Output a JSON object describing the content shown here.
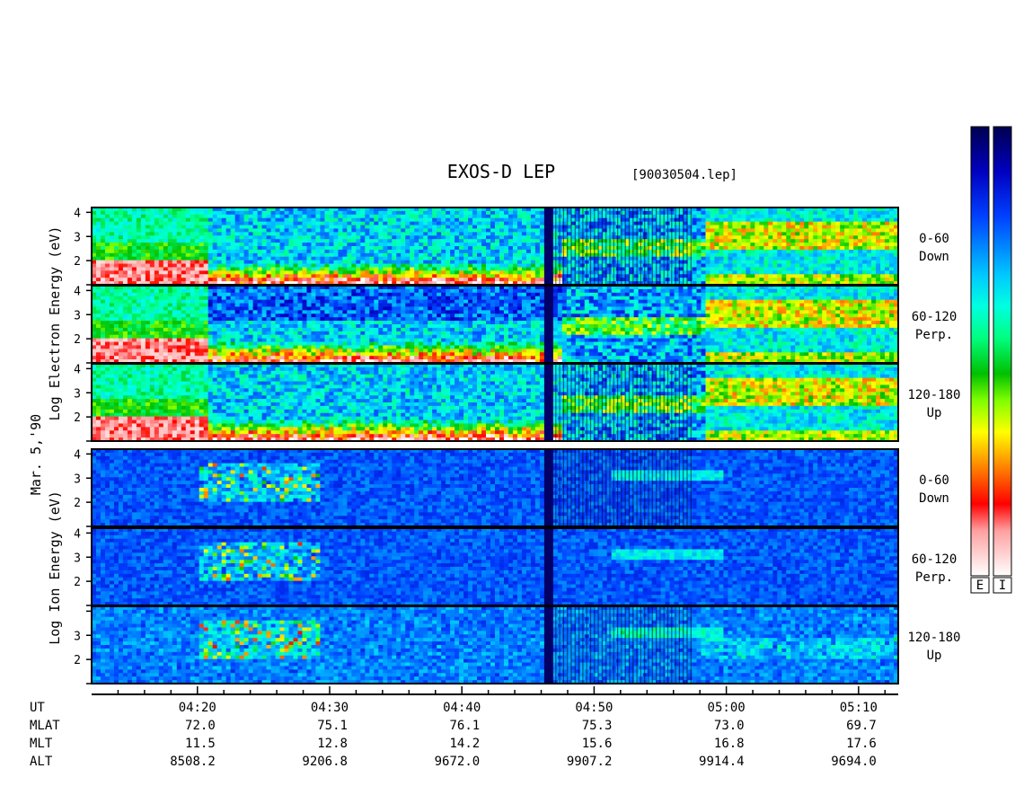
{
  "header": {
    "title": "EXOS-D LEP",
    "file_tag": "[90030504.lep]"
  },
  "left_labels": {
    "electron_axis": "Log Electron Energy (eV)",
    "ion_axis": "Log Ion Energy (eV)",
    "date": "Mar. 5,'90"
  },
  "colorbar": {
    "labels": [
      "E",
      "I"
    ],
    "colors_top_to_bottom": [
      "#000060",
      "#0000ff",
      "#0080ff",
      "#00ffff",
      "#00ff80",
      "#00c000",
      "#80ff00",
      "#ffff00",
      "#ff8000",
      "#ff0000",
      "#ffb0b0",
      "#ffffff"
    ]
  },
  "chart_data": {
    "type": "heatmap",
    "title": "EXOS-D LEP",
    "panels": [
      {
        "species": "Electron",
        "pitch_angle": "0-60",
        "direction": "Down",
        "yticks": [
          4,
          3,
          2
        ],
        "ylim": [
          1,
          4.2
        ]
      },
      {
        "species": "Electron",
        "pitch_angle": "60-120",
        "direction": "Perp.",
        "yticks": [
          4,
          3,
          2
        ],
        "ylim": [
          1,
          4.2
        ]
      },
      {
        "species": "Electron",
        "pitch_angle": "120-180",
        "direction": "Up",
        "yticks": [
          4,
          3,
          2
        ],
        "ylim": [
          1,
          4.2
        ]
      },
      {
        "species": "Ion",
        "pitch_angle": "0-60",
        "direction": "Down",
        "yticks": [
          4,
          3,
          2
        ],
        "ylim": [
          1,
          4.2
        ]
      },
      {
        "species": "Ion",
        "pitch_angle": "60-120",
        "direction": "Perp.",
        "yticks": [
          4,
          3,
          2
        ],
        "ylim": [
          1,
          4.2
        ]
      },
      {
        "species": "Ion",
        "pitch_angle": "120-180",
        "direction": "Up",
        "yticks": [
          3,
          2
        ],
        "ylim": [
          1,
          4.2
        ]
      }
    ],
    "xlim": [
      "04:12",
      "05:13"
    ],
    "x_ticks": [
      "04:20",
      "04:30",
      "04:40",
      "04:50",
      "05:00",
      "05:10"
    ],
    "ephemeris": [
      {
        "label": "UT",
        "values": [
          "04:20",
          "04:30",
          "04:40",
          "04:50",
          "05:00",
          "05:10"
        ]
      },
      {
        "label": "MLAT",
        "values": [
          "72.0",
          "75.1",
          "76.1",
          "75.3",
          "73.0",
          "69.7"
        ]
      },
      {
        "label": "MLT",
        "values": [
          "11.5",
          "12.8",
          "14.2",
          "15.6",
          "16.8",
          "17.6"
        ]
      },
      {
        "label": "ALT",
        "values": [
          "8508.2",
          "9206.8",
          "9672.0",
          "9907.2",
          "9914.4",
          "9694.0"
        ]
      }
    ],
    "data_gap": {
      "from": "04:46",
      "to": "04:47"
    }
  }
}
